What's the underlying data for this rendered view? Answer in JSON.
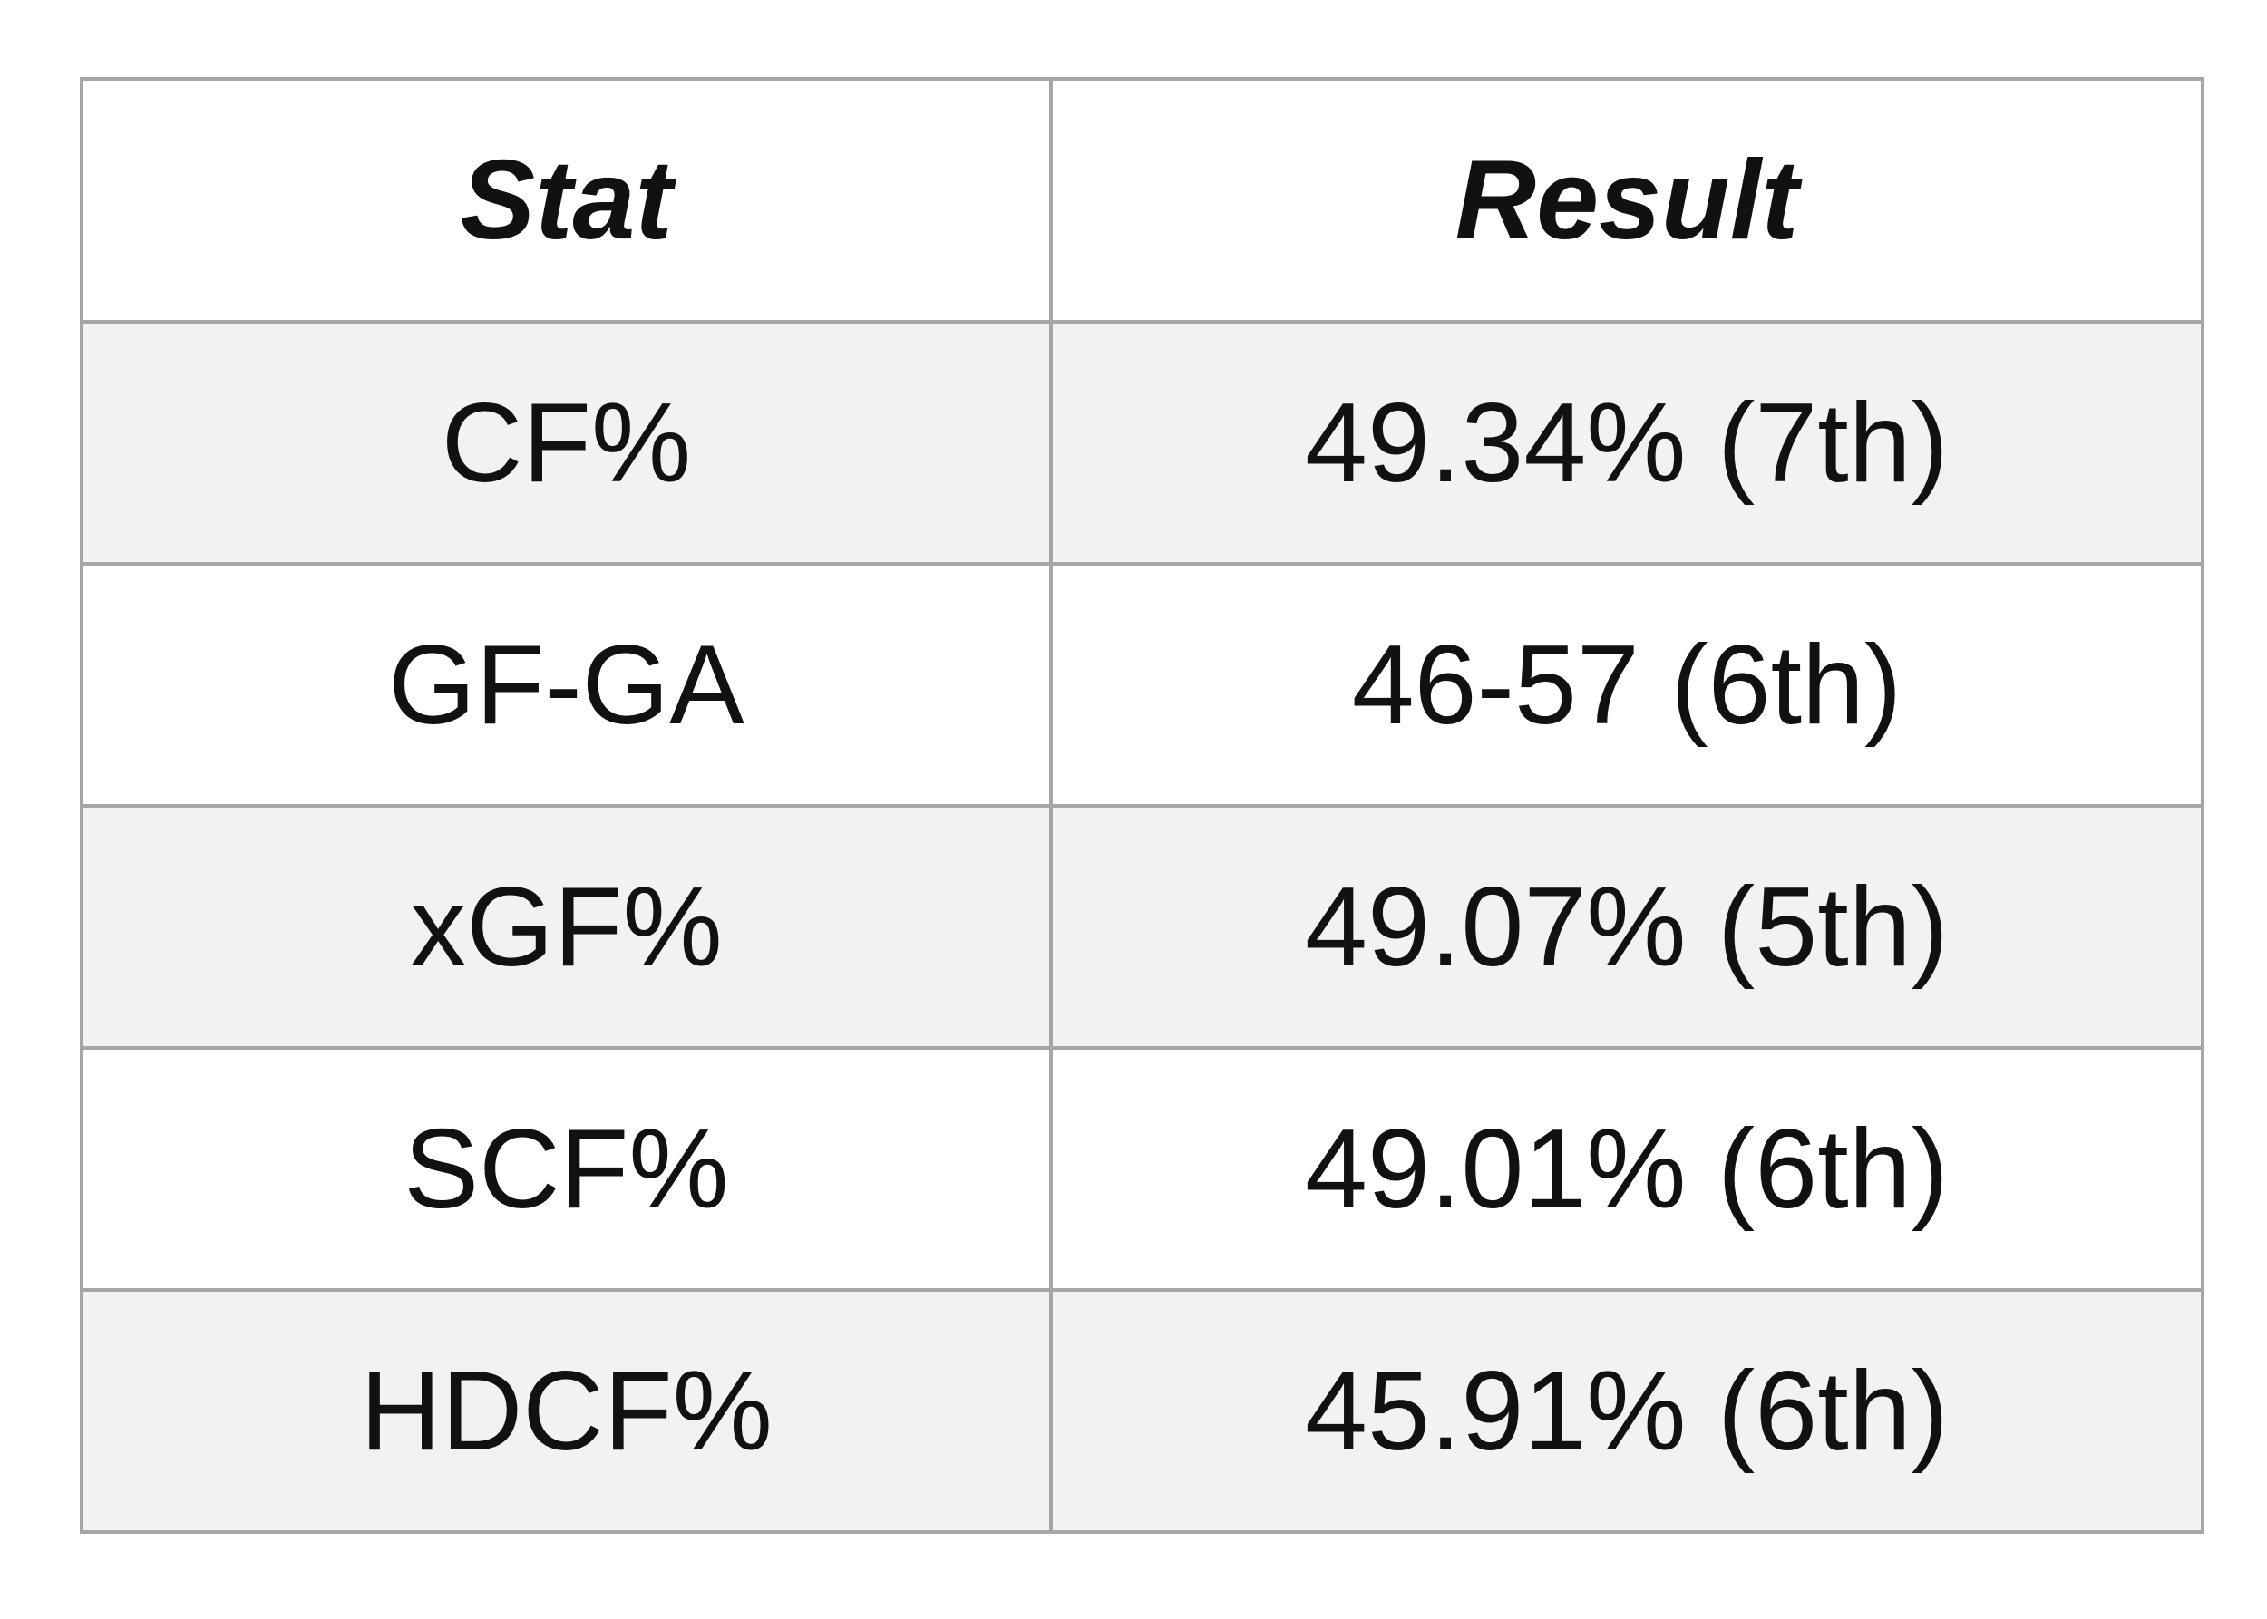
{
  "colors": {
    "background": "#ffffff",
    "row_alt": "#f2f2f2",
    "border": "#a6a6a6",
    "text": "#111111"
  },
  "table": {
    "columns": [
      "Stat",
      "Result"
    ],
    "rows": [
      {
        "stat": "CF%",
        "result": "49.34% (7th)"
      },
      {
        "stat": "GF-GA",
        "result": "46-57 (6th)"
      },
      {
        "stat": "xGF%",
        "result": "49.07% (5th)"
      },
      {
        "stat": "SCF%",
        "result": "49.01% (6th)"
      },
      {
        "stat": "HDCF%",
        "result": "45.91% (6th)"
      }
    ]
  },
  "chart_data": {
    "type": "table",
    "title": "",
    "columns": [
      "Stat",
      "Result"
    ],
    "rows": [
      [
        "CF%",
        "49.34% (7th)"
      ],
      [
        "GF-GA",
        "46-57 (6th)"
      ],
      [
        "xGF%",
        "49.07% (5th)"
      ],
      [
        "SCF%",
        "49.01% (6th)"
      ],
      [
        "HDCF%",
        "45.91% (6th)"
      ]
    ],
    "parsed": {
      "CF_pct": {
        "value": 49.34,
        "rank": "7th"
      },
      "GF_GA": {
        "gf": 46,
        "ga": 57,
        "rank": "6th"
      },
      "xGF_pct": {
        "value": 49.07,
        "rank": "5th"
      },
      "SCF_pct": {
        "value": 49.01,
        "rank": "6th"
      },
      "HDCF_pct": {
        "value": 45.91,
        "rank": "6th"
      }
    },
    "layout": {
      "striped_rows": true,
      "header_style": "bold-italic",
      "grid": true
    }
  }
}
